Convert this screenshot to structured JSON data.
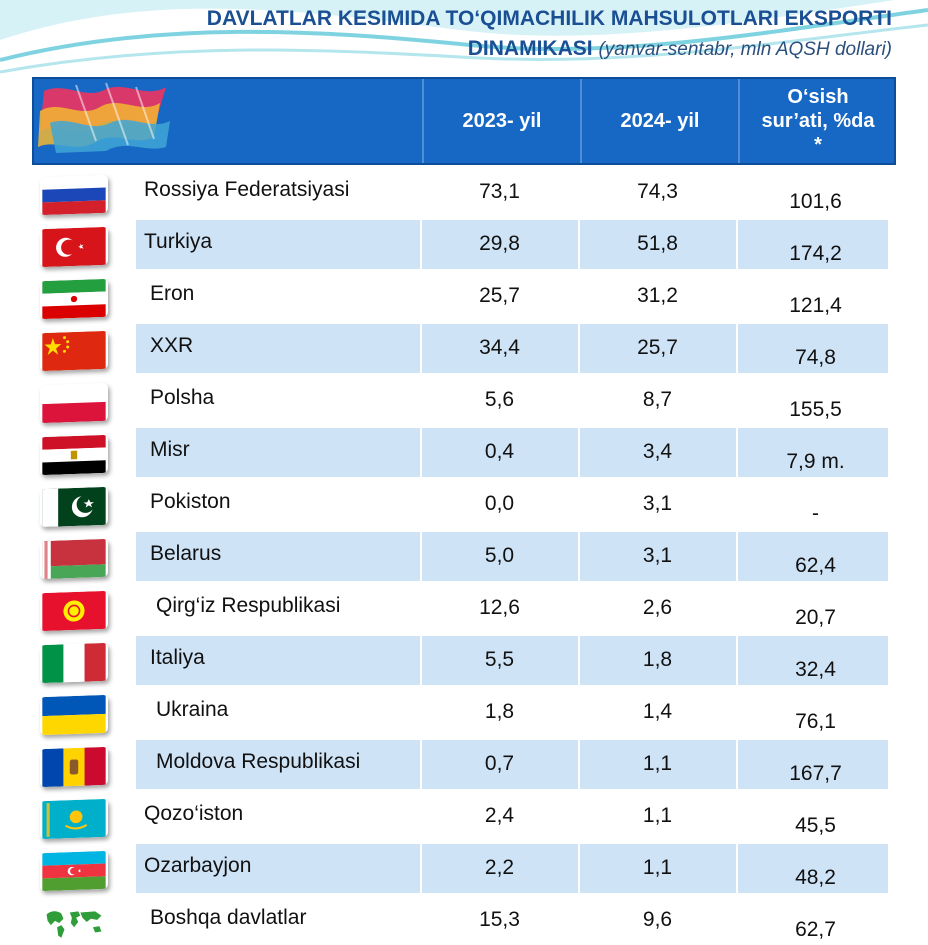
{
  "title": {
    "line1": "DAVLATLAR KESIMIDA TO‘QIMACHILIK MAHSULOTLARI EKSPORTI",
    "line2": "DINAMIKASI",
    "subtitle": "(yanvar-sentabr, mln AQSH dollari)"
  },
  "header": {
    "col_2023": "2023- yil",
    "col_2024": "2024- yil",
    "col_growth_1": "O‘sish",
    "col_growth_2": "sur’ati, %da",
    "col_growth_3": "*"
  },
  "rows": [
    {
      "country": "Rossiya Federatsiyasi",
      "flag": "russia-flag",
      "v2023": "73,1",
      "v2024": "74,3",
      "growth": "101,6"
    },
    {
      "country": "Turkiya",
      "flag": "turkey-flag",
      "v2023": "29,8",
      "v2024": "51,8",
      "growth": "174,2"
    },
    {
      "country": "Eron",
      "flag": "iran-flag",
      "v2023": "25,7",
      "v2024": "31,2",
      "growth": "121,4"
    },
    {
      "country": "XXR",
      "flag": "china-flag",
      "v2023": "34,4",
      "v2024": "25,7",
      "growth": "74,8"
    },
    {
      "country": "Polsha",
      "flag": "poland-flag",
      "v2023": "5,6",
      "v2024": "8,7",
      "growth": "155,5"
    },
    {
      "country": "Misr",
      "flag": "egypt-flag",
      "v2023": "0,4",
      "v2024": "3,4",
      "growth": "7,9 m."
    },
    {
      "country": "Pokiston",
      "flag": "pakistan-flag",
      "v2023": "0,0",
      "v2024": "3,1",
      "growth": "-"
    },
    {
      "country": "Belarus",
      "flag": "belarus-flag",
      "v2023": "5,0",
      "v2024": "3,1",
      "growth": "62,4"
    },
    {
      "country": "Qirg‘iz Respublikasi",
      "flag": "kyrgyzstan-flag",
      "v2023": "12,6",
      "v2024": "2,6",
      "growth": "20,7"
    },
    {
      "country": "Italiya",
      "flag": "italy-flag",
      "v2023": "5,5",
      "v2024": "1,8",
      "growth": "32,4"
    },
    {
      "country": "Ukraina",
      "flag": "ukraine-flag",
      "v2023": "1,8",
      "v2024": "1,4",
      "growth": "76,1"
    },
    {
      "country": "Moldova Respublikasi",
      "flag": "moldova-flag",
      "v2023": "0,7",
      "v2024": "1,1",
      "growth": "167,7"
    },
    {
      "country": "Qozo‘iston",
      "flag": "kazakhstan-flag",
      "v2023": "2,4",
      "v2024": "1,1",
      "growth": "45,5"
    },
    {
      "country": "Ozarbayjon",
      "flag": "azerbaijan-flag",
      "v2023": "2,2",
      "v2024": "1,1",
      "growth": "48,2"
    },
    {
      "country": "Boshqa davlatlar",
      "flag": "world-map-icon",
      "v2023": "15,3",
      "v2024": "9,6",
      "growth": "62,7"
    }
  ]
}
